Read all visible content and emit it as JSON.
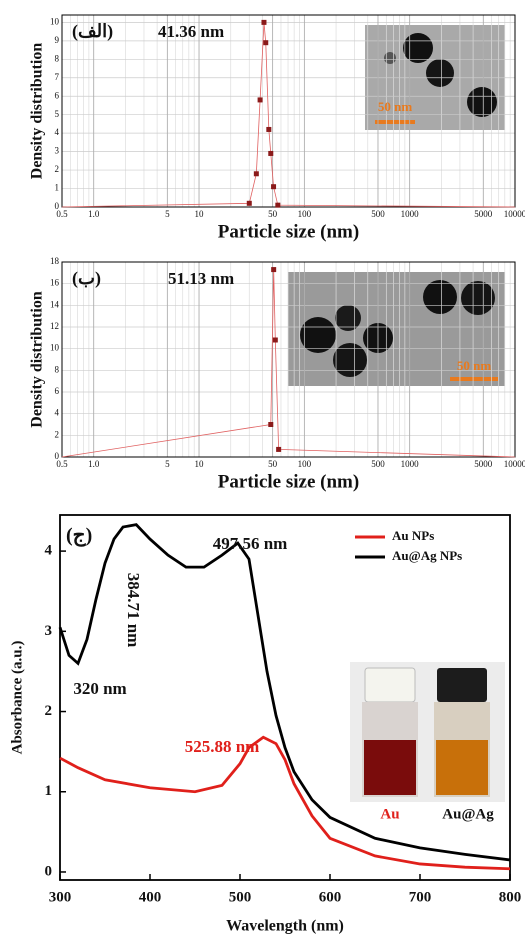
{
  "chart_data": [
    {
      "type": "scatter",
      "panel_label": "(الف)",
      "annotation": "41.36 nm",
      "inset_scale": "50 nm",
      "x_label": "Particle size (nm)",
      "y_label": "Density distribution",
      "xscale": "log",
      "xlim": [
        0.5,
        10000
      ],
      "xticks": [
        0.5,
        {
          "value": 1,
          "label": "1.0"
        },
        5,
        10,
        50,
        100,
        500,
        1000,
        5000,
        10000
      ],
      "ylim": [
        0,
        10.4
      ],
      "yticks": [
        0,
        1,
        2,
        3,
        4,
        5,
        6,
        7,
        8,
        9,
        10
      ],
      "grid": true,
      "color": "#8b1a1a",
      "x": [
        0.5,
        30,
        35,
        38,
        41.36,
        43,
        46,
        48,
        51,
        56,
        10000
      ],
      "values": [
        0,
        0.2,
        1.8,
        5.8,
        10,
        8.9,
        4.2,
        2.9,
        1.1,
        0.1,
        0
      ]
    },
    {
      "type": "scatter",
      "panel_label": "(ب)",
      "annotation": "51.13 nm",
      "inset_scale": "50 nm",
      "x_label": "Particle size (nm)",
      "y_label": "Density distribution",
      "xscale": "log",
      "xlim": [
        0.5,
        10000
      ],
      "xticks": [
        0.5,
        {
          "value": 1,
          "label": "1.0"
        },
        5,
        10,
        50,
        100,
        500,
        1000,
        5000,
        10000
      ],
      "ylim": [
        0,
        18
      ],
      "yticks": [
        0,
        2,
        4,
        6,
        8,
        10,
        12,
        14,
        16,
        18
      ],
      "grid": true,
      "color": "#8b1a1a",
      "x": [
        0.5,
        48,
        51.13,
        53,
        57,
        10000
      ],
      "values": [
        0,
        3,
        17.3,
        10.8,
        0.7,
        0
      ]
    },
    {
      "type": "line",
      "panel_label": "(ج)",
      "x_label": "Wavelength (nm)",
      "y_label": "Absorbance (a.u.)",
      "annotations": [
        "384.71 nm",
        "497.56 nm",
        "320 nm",
        "525.88 nm"
      ],
      "inset_labels": [
        "Au",
        "Au@Ag"
      ],
      "xlim": [
        300,
        800
      ],
      "xticks": [
        300,
        400,
        500,
        600,
        700,
        800
      ],
      "ylim": [
        -0.1,
        4.45
      ],
      "yticks": [
        0,
        1,
        2,
        3,
        4
      ],
      "grid": false,
      "legend": "upper right",
      "series": [
        {
          "name": "Au NPs",
          "color": "#e0201b",
          "x": [
            300,
            320,
            350,
            400,
            450,
            480,
            500,
            510,
            525.88,
            540,
            550,
            560,
            580,
            600,
            650,
            700,
            750,
            800
          ],
          "values": [
            1.42,
            1.3,
            1.15,
            1.05,
            1.0,
            1.08,
            1.35,
            1.55,
            1.68,
            1.6,
            1.4,
            1.1,
            0.7,
            0.42,
            0.2,
            0.1,
            0.06,
            0.04
          ]
        },
        {
          "name": "Au@Ag NPs",
          "color": "#000000",
          "x": [
            300,
            310,
            320,
            330,
            340,
            350,
            360,
            370,
            384.71,
            400,
            420,
            440,
            460,
            480,
            497.56,
            510,
            520,
            530,
            540,
            550,
            560,
            580,
            600,
            650,
            700,
            750,
            800
          ],
          "values": [
            3.05,
            2.7,
            2.6,
            2.9,
            3.4,
            3.85,
            4.15,
            4.3,
            4.33,
            4.15,
            3.95,
            3.8,
            3.8,
            3.95,
            4.1,
            3.9,
            3.2,
            2.5,
            1.95,
            1.55,
            1.25,
            0.9,
            0.68,
            0.42,
            0.3,
            0.22,
            0.15
          ]
        }
      ]
    }
  ]
}
